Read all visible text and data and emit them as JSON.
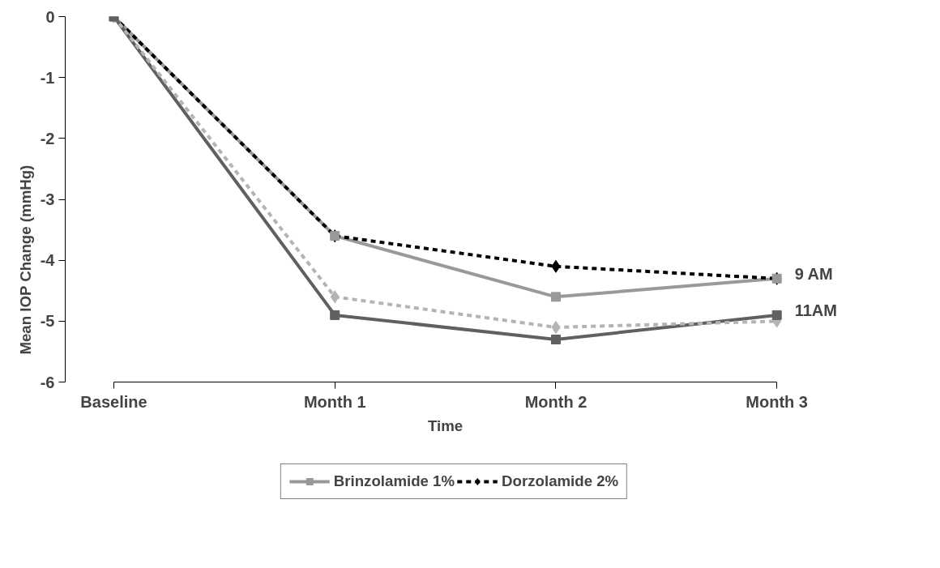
{
  "chart_data": {
    "type": "line",
    "xlabel": "Time",
    "ylabel": "Mean IOP Change (mmHg)",
    "categories": [
      "Baseline",
      "Month 1",
      "Month 2",
      "Month 3"
    ],
    "ylim": [
      -6,
      0
    ],
    "yticks": [
      -6,
      -5,
      -4,
      -3,
      -2,
      -1,
      0
    ],
    "grid": false,
    "legend": "bottom",
    "series": [
      {
        "name": "Brinzolamide 1%",
        "color": "#999999",
        "marker": "square",
        "line_style": "solid",
        "values": [
          0,
          -3.6,
          -4.6,
          -4.3
        ]
      },
      {
        "name": "Dorzolamide 2%",
        "color": "#000000",
        "marker": "diamond",
        "line_style": "dashed",
        "values": [
          0,
          -3.6,
          -4.1,
          -4.3
        ]
      },
      {
        "color": "#606060",
        "marker": "square",
        "line_style": "solid",
        "values": [
          0,
          -4.9,
          -5.3,
          -4.9
        ]
      },
      {
        "color": "#b4b4b4",
        "marker": "diamond",
        "line_style": "dashed",
        "values": [
          0,
          -4.6,
          -5.1,
          -5.0
        ]
      }
    ],
    "annotations": [
      {
        "text": "9 AM",
        "x": "Month 3",
        "y": -4.3
      },
      {
        "text": "11AM",
        "x": "Month 3",
        "y": -4.9
      }
    ]
  }
}
